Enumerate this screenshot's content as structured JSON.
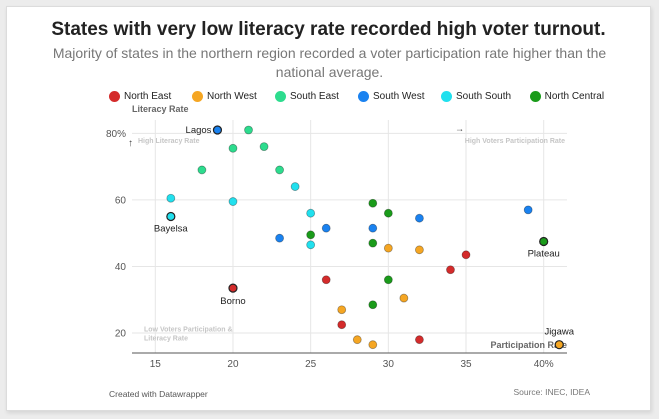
{
  "title": "States with very low literacy rate recorded high voter turnout.",
  "subtitle": "Majority of states in the northern region recorded a voter participation rate higher than the national average.",
  "footer": {
    "credit": "Created with Datawrapper",
    "source": "Source: INEC, IDEA"
  },
  "chart_data": {
    "type": "scatter",
    "xlabel": "Participation Rate",
    "ylabel": "Literacy Rate",
    "xlim": [
      13.5,
      41.5
    ],
    "ylim": [
      14,
      84
    ],
    "x_ticks": [
      {
        "value": 15,
        "label": "15"
      },
      {
        "value": 20,
        "label": "20"
      },
      {
        "value": 25,
        "label": "25"
      },
      {
        "value": 30,
        "label": "30"
      },
      {
        "value": 35,
        "label": "35"
      },
      {
        "value": 40,
        "label": "40%"
      }
    ],
    "y_ticks": [
      {
        "value": 20,
        "label": "20"
      },
      {
        "value": 40,
        "label": "40"
      },
      {
        "value": 60,
        "label": "60"
      },
      {
        "value": 80,
        "label": "80%"
      }
    ],
    "grid": true,
    "legend_position": "top",
    "quadrant_labels": {
      "top_left": "High Literacy Rate",
      "top_right": "High Voters Participation Rate",
      "bottom_left": "Low Voters Participation & Literacy Rate",
      "top_left_arrow": "↑",
      "top_right_arrow": "→"
    },
    "series": [
      {
        "name": "North East",
        "color": "#d42b2b",
        "points": [
          {
            "x": 20,
            "y": 33.5,
            "label": "Borno"
          },
          {
            "x": 26,
            "y": 36
          },
          {
            "x": 27,
            "y": 22.5
          },
          {
            "x": 32,
            "y": 18
          },
          {
            "x": 34,
            "y": 39
          },
          {
            "x": 35,
            "y": 43.5
          }
        ]
      },
      {
        "name": "North West",
        "color": "#f5a623",
        "points": [
          {
            "x": 27,
            "y": 27
          },
          {
            "x": 28,
            "y": 18
          },
          {
            "x": 29,
            "y": 16.5
          },
          {
            "x": 30,
            "y": 45.5
          },
          {
            "x": 31,
            "y": 30.5
          },
          {
            "x": 32,
            "y": 45
          },
          {
            "x": 41,
            "y": 16.5,
            "label": "Jigawa"
          }
        ]
      },
      {
        "name": "South East",
        "color": "#2ddc8e",
        "points": [
          {
            "x": 18,
            "y": 69
          },
          {
            "x": 20,
            "y": 75.5
          },
          {
            "x": 21,
            "y": 81
          },
          {
            "x": 22,
            "y": 76
          },
          {
            "x": 23,
            "y": 69
          }
        ]
      },
      {
        "name": "South West",
        "color": "#1a82f0",
        "points": [
          {
            "x": 19,
            "y": 81,
            "label": "Lagos"
          },
          {
            "x": 23,
            "y": 48.5
          },
          {
            "x": 26,
            "y": 51.5
          },
          {
            "x": 29,
            "y": 51.5
          },
          {
            "x": 32,
            "y": 54.5
          },
          {
            "x": 39,
            "y": 57
          }
        ]
      },
      {
        "name": "South South",
        "color": "#21e0ee",
        "points": [
          {
            "x": 16,
            "y": 60.5
          },
          {
            "x": 16,
            "y": 55,
            "label": "Bayelsa"
          },
          {
            "x": 20,
            "y": 59.5
          },
          {
            "x": 24,
            "y": 64
          },
          {
            "x": 25,
            "y": 56
          },
          {
            "x": 25,
            "y": 46.5
          }
        ]
      },
      {
        "name": "North Central",
        "color": "#1a9b1a",
        "points": [
          {
            "x": 25,
            "y": 49.5
          },
          {
            "x": 29,
            "y": 59
          },
          {
            "x": 29,
            "y": 47
          },
          {
            "x": 29,
            "y": 28.5
          },
          {
            "x": 30,
            "y": 56
          },
          {
            "x": 30,
            "y": 36
          },
          {
            "x": 40,
            "y": 47.5,
            "label": "Plateau"
          }
        ]
      }
    ]
  }
}
